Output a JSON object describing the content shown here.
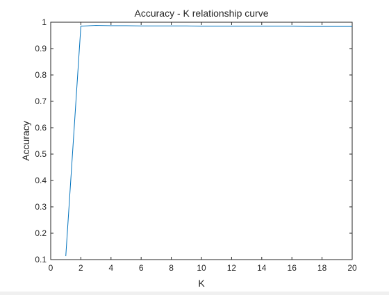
{
  "chart_data": {
    "type": "line",
    "title": "Accuracy - K relationship curve",
    "xlabel": "K",
    "ylabel": "Accuracy",
    "xlim": [
      0,
      20
    ],
    "ylim": [
      0.1,
      1
    ],
    "xticks": [
      0,
      2,
      4,
      6,
      8,
      10,
      12,
      14,
      16,
      18,
      20
    ],
    "xtick_labels": [
      "0",
      "2",
      "4",
      "6",
      "8",
      "10",
      "12",
      "14",
      "16",
      "18",
      "20"
    ],
    "yticks": [
      0.1,
      0.2,
      0.3,
      0.4,
      0.5,
      0.6,
      0.7,
      0.8,
      0.9,
      1.0
    ],
    "ytick_labels": [
      "0.1",
      "0.2",
      "0.3",
      "0.4",
      "0.5",
      "0.6",
      "0.7",
      "0.8",
      "0.9",
      "1"
    ],
    "grid": false,
    "series": [
      {
        "color": "#0072bd",
        "x": [
          1,
          2,
          3,
          4,
          5,
          6,
          7,
          8,
          9,
          10,
          11,
          12,
          13,
          14,
          15,
          16,
          17,
          18,
          19,
          20
        ],
        "y": [
          0.113,
          0.985,
          0.988,
          0.987,
          0.987,
          0.986,
          0.986,
          0.986,
          0.986,
          0.985,
          0.985,
          0.985,
          0.985,
          0.985,
          0.985,
          0.985,
          0.984,
          0.984,
          0.984,
          0.984
        ]
      }
    ]
  }
}
